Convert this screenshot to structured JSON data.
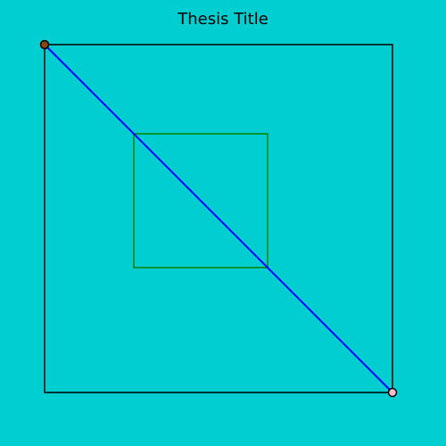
{
  "title": "Thesis Title",
  "colors": {
    "background": "#00CED1",
    "outer_square": "#000000",
    "inner_square": "#008000",
    "diagonal": "#0000FF",
    "start_point_fill": "#8B4513",
    "end_point_fill": "#FFC0CB",
    "point_stroke": "#000000"
  }
}
